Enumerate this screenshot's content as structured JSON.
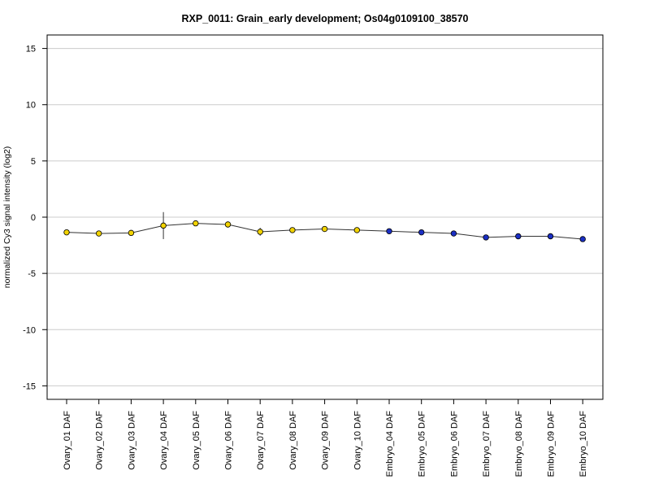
{
  "chart_data": {
    "type": "line",
    "title": "RXP_0011: Grain_early development; Os04g0109100_38570",
    "xlabel": "",
    "ylabel": "normalized Cy3 signal intensity (log2)",
    "ylim": [
      -16.2,
      16.2
    ],
    "yticks": [
      -15,
      -10,
      -5,
      0,
      5,
      10,
      15
    ],
    "ytick_labels": [
      "-15",
      "-10",
      "-5",
      "0",
      "5",
      "10",
      "15"
    ],
    "grid": "horizontal",
    "categories": [
      "Ovary_01 DAF",
      "Ovary_02 DAF",
      "Ovary_03 DAF",
      "Ovary_04 DAF",
      "Ovary_05 DAF",
      "Ovary_06 DAF",
      "Ovary_07 DAF",
      "Ovary_08 DAF",
      "Ovary_09 DAF",
      "Ovary_10 DAF",
      "Embryo_04 DAF",
      "Embryo_05 DAF",
      "Embryo_06 DAF",
      "Embryo_07 DAF",
      "Embryo_08 DAF",
      "Embryo_09 DAF",
      "Embryo_10 DAF"
    ],
    "values": [
      -1.35,
      -1.45,
      -1.4,
      -0.75,
      -0.55,
      -0.65,
      -1.3,
      -1.15,
      -1.05,
      -1.15,
      -1.25,
      -1.35,
      -1.45,
      -1.8,
      -1.7,
      -1.7,
      -1.95
    ],
    "errors": [
      0.1,
      0.1,
      0.1,
      1.2,
      0.1,
      0.15,
      0.35,
      0.1,
      0.1,
      0.1,
      0.2,
      0.1,
      0.25,
      0.1,
      0.1,
      0.2,
      0.15
    ],
    "point_colors": [
      "#f2d300",
      "#f2d300",
      "#f2d300",
      "#f2d300",
      "#f2d300",
      "#f2d300",
      "#f2d300",
      "#f2d300",
      "#f2d300",
      "#f2d300",
      "#1b2fc4",
      "#1b2fc4",
      "#1b2fc4",
      "#1b2fc4",
      "#1b2fc4",
      "#1b2fc4",
      "#1b2fc4"
    ]
  }
}
